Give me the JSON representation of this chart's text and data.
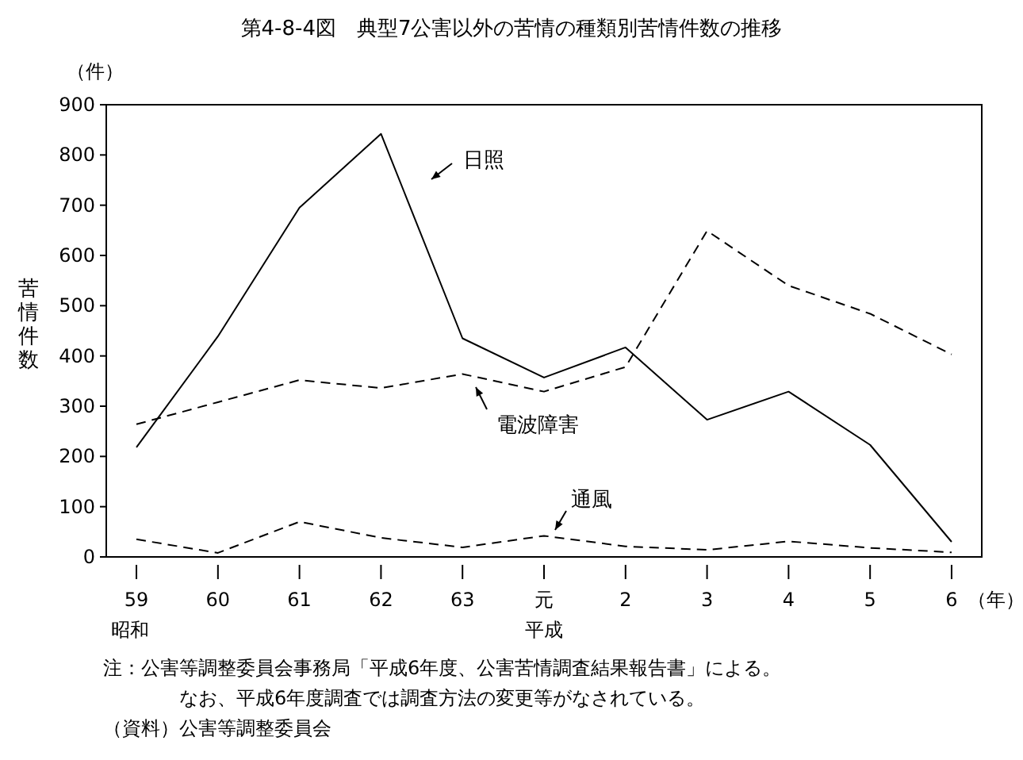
{
  "chart_data": {
    "type": "line",
    "title": "第4-8-4図　典型7公害以外の苦情の種類別苦情件数の推移",
    "ylabel": "苦情件数",
    "xlabel": "（年）",
    "categories": [
      "59",
      "60",
      "61",
      "62",
      "63",
      "元",
      "2",
      "3",
      "4",
      "5",
      "6"
    ],
    "series": [
      {
        "name": "日照",
        "color": "#000000",
        "line_style": "solid",
        "values": [
          218,
          439,
          695,
          842,
          435,
          357,
          417,
          273,
          329,
          223,
          30
        ]
      },
      {
        "name": "電波障害",
        "color": "#000000",
        "line_style": "dashed",
        "values": [
          264,
          308,
          352,
          336,
          364,
          329,
          378,
          649,
          540,
          484,
          403
        ]
      },
      {
        "name": "通風",
        "color": "#000000",
        "line_style": "dashed",
        "values": [
          35,
          8,
          70,
          38,
          19,
          42,
          21,
          14,
          31,
          18,
          9
        ]
      }
    ],
    "ylim": [
      0,
      900
    ],
    "yticks": [
      0,
      100,
      200,
      300,
      400,
      500,
      600,
      700,
      800,
      900
    ],
    "grid": false,
    "marker": "none",
    "annotations": [
      "（件）",
      "昭和",
      "平成",
      "注：公害等調整委員会事務局「平成6年度、公害苦情調査結果報告書」による。",
      "なお、平成6年度調査では調査方法の変更等がなされている。",
      "（資料）公害等調整委員会"
    ]
  }
}
